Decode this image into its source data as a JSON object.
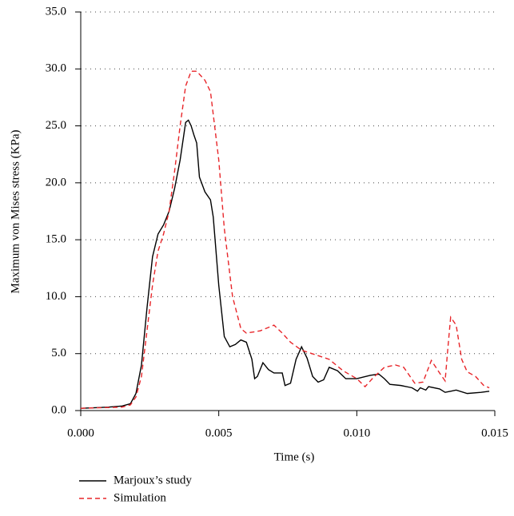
{
  "chart_data": {
    "type": "line",
    "x_label": "Time (s)",
    "y_label": "Maximum von Mises stress (KPa)",
    "xlim": [
      0,
      0.015
    ],
    "xticks": [
      {
        "value": 0,
        "label": "0.000"
      },
      {
        "value": 0.005,
        "label": "0.005"
      },
      {
        "value": 0.01,
        "label": "0.010"
      },
      {
        "value": 0.015,
        "label": "0.015"
      }
    ],
    "ylim": [
      0,
      35
    ],
    "yticks": [
      {
        "value": 0,
        "label": "0.0"
      },
      {
        "value": 5,
        "label": "5.0"
      },
      {
        "value": 10,
        "label": "10.0"
      },
      {
        "value": 15,
        "label": "15.0"
      },
      {
        "value": 20,
        "label": "20.0"
      },
      {
        "value": 25,
        "label": "25.0"
      },
      {
        "value": 30,
        "label": "30.0"
      },
      {
        "value": 35,
        "label": "35.0"
      }
    ],
    "grid": true,
    "series": [
      {
        "name": "Marjoux’s study",
        "color": "#000000",
        "linestyle": "solid",
        "x": [
          0,
          0.001,
          0.0015,
          0.0018,
          0.002,
          0.0022,
          0.0024,
          0.0026,
          0.0028,
          0.003,
          0.0032,
          0.0034,
          0.0036,
          0.0038,
          0.0039,
          0.004,
          0.0041,
          0.0042,
          0.0043,
          0.0045,
          0.0047,
          0.0048,
          0.005,
          0.0052,
          0.0054,
          0.0056,
          0.0058,
          0.006,
          0.0062,
          0.0063,
          0.0064,
          0.0066,
          0.0068,
          0.007,
          0.0073,
          0.0074,
          0.0076,
          0.0078,
          0.008,
          0.0082,
          0.0084,
          0.0086,
          0.0088,
          0.009,
          0.0093,
          0.0096,
          0.01,
          0.0105,
          0.0108,
          0.011,
          0.0112,
          0.0116,
          0.012,
          0.0122,
          0.0123,
          0.0125,
          0.0126,
          0.013,
          0.0132,
          0.0134,
          0.0136,
          0.014,
          0.0145,
          0.0148
        ],
        "values": [
          0.2,
          0.3,
          0.4,
          0.6,
          1.5,
          4,
          9,
          13.5,
          15.5,
          16.3,
          17.5,
          19.5,
          22,
          25.3,
          25.5,
          25,
          24.2,
          23.5,
          20.5,
          19.2,
          18.5,
          17,
          11,
          6.5,
          5.6,
          5.8,
          6.2,
          6,
          4.5,
          2.8,
          3,
          4.2,
          3.6,
          3.3,
          3.3,
          2.2,
          2.4,
          4.5,
          5.6,
          4.6,
          3,
          2.5,
          2.7,
          3.8,
          3.5,
          2.8,
          2.8,
          3.1,
          3.2,
          2.8,
          2.3,
          2.2,
          2,
          1.7,
          2,
          1.8,
          2.1,
          1.9,
          1.6,
          1.7,
          1.8,
          1.5,
          1.6,
          1.7
        ]
      },
      {
        "name": "Simulation",
        "color": "#e8262a",
        "linestyle": "dashed",
        "x": [
          0,
          0.0015,
          0.0018,
          0.002,
          0.0022,
          0.0024,
          0.0026,
          0.0028,
          0.003,
          0.0032,
          0.0034,
          0.0036,
          0.0038,
          0.004,
          0.0042,
          0.0045,
          0.0047,
          0.005,
          0.0052,
          0.0055,
          0.0058,
          0.006,
          0.0065,
          0.007,
          0.0073,
          0.0076,
          0.008,
          0.009,
          0.0095,
          0.01,
          0.0103,
          0.0106,
          0.011,
          0.0114,
          0.0117,
          0.0121,
          0.0124,
          0.0127,
          0.013,
          0.0132,
          0.0133,
          0.0134,
          0.0136,
          0.0138,
          0.014,
          0.0143,
          0.0146,
          0.0148
        ],
        "values": [
          0.2,
          0.3,
          0.5,
          1.2,
          3,
          7,
          11,
          14,
          15.5,
          17.5,
          21,
          25,
          28.5,
          29.8,
          29.8,
          29,
          28,
          22,
          16,
          10,
          7.2,
          6.8,
          7,
          7.5,
          6.8,
          6,
          5.3,
          4.5,
          3.5,
          2.8,
          2.1,
          2.9,
          3.8,
          4,
          3.8,
          2.4,
          2.5,
          4.4,
          3.3,
          2.6,
          5.5,
          8.2,
          7.5,
          4.5,
          3.4,
          3,
          2.2,
          2
        ]
      }
    ]
  }
}
